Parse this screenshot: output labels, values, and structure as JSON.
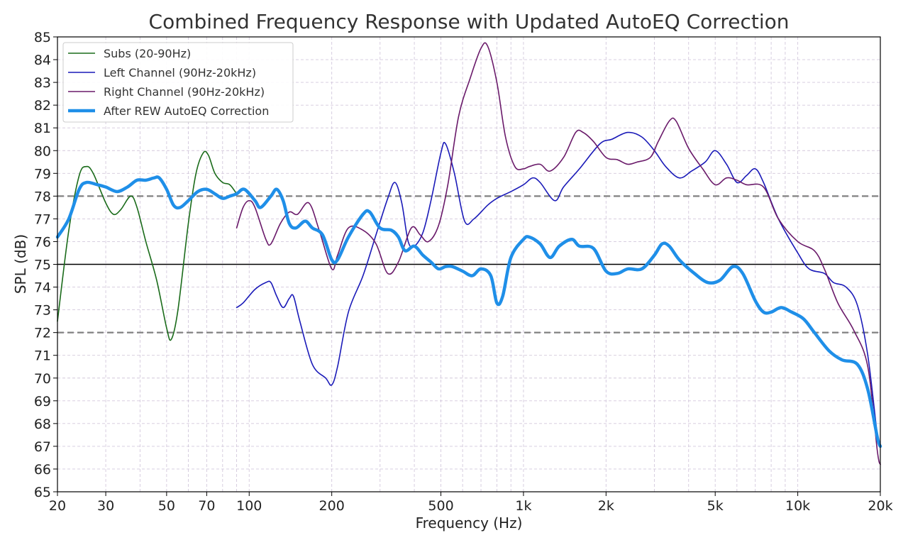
{
  "chart_data": {
    "type": "line",
    "title": "Combined Frequency Response with Updated AutoEQ Correction",
    "xlabel": "Frequency (Hz)",
    "ylabel": "SPL (dB)",
    "x_scale": "log",
    "xlim": [
      20,
      20000
    ],
    "ylim": [
      65,
      85
    ],
    "x_ticks": [
      {
        "value": 20,
        "label": "20"
      },
      {
        "value": 30,
        "label": "30"
      },
      {
        "value": 50,
        "label": "50"
      },
      {
        "value": 70,
        "label": "70"
      },
      {
        "value": 100,
        "label": "100"
      },
      {
        "value": 200,
        "label": "200"
      },
      {
        "value": 500,
        "label": "500"
      },
      {
        "value": 1000,
        "label": "1k"
      },
      {
        "value": 2000,
        "label": "2k"
      },
      {
        "value": 5000,
        "label": "5k"
      },
      {
        "value": 10000,
        "label": "10k"
      },
      {
        "value": 20000,
        "label": "20k"
      }
    ],
    "y_ticks": [
      65,
      66,
      67,
      68,
      69,
      70,
      71,
      72,
      73,
      74,
      75,
      76,
      77,
      78,
      79,
      80,
      81,
      82,
      83,
      84,
      85
    ],
    "grid": true,
    "legend_position": "top-left",
    "reference_lines": [
      {
        "y": 75,
        "style": "solid",
        "color": "#000000"
      },
      {
        "y": 78,
        "style": "dashed",
        "color": "#808080"
      },
      {
        "y": 72,
        "style": "dashed",
        "color": "#808080"
      }
    ],
    "series": [
      {
        "name": "Subs (20-90Hz)",
        "color": "#1a6b1a",
        "width": 1.6,
        "points": [
          [
            20,
            72.5
          ],
          [
            22,
            76.5
          ],
          [
            24,
            78.9
          ],
          [
            25.5,
            79.3
          ],
          [
            27,
            79.0
          ],
          [
            30,
            77.7
          ],
          [
            32,
            77.2
          ],
          [
            34,
            77.4
          ],
          [
            37,
            78.0
          ],
          [
            39,
            77.5
          ],
          [
            42,
            76.0
          ],
          [
            46,
            74.3
          ],
          [
            50,
            72.2
          ],
          [
            52,
            71.7
          ],
          [
            55,
            73.0
          ],
          [
            60,
            76.8
          ],
          [
            64,
            79.0
          ],
          [
            68,
            79.9
          ],
          [
            71,
            79.8
          ],
          [
            75,
            79.0
          ],
          [
            80,
            78.6
          ],
          [
            85,
            78.5
          ],
          [
            90,
            78.1
          ]
        ]
      },
      {
        "name": "Left Channel (90Hz-20kHz)",
        "color": "#1a1ab8",
        "width": 1.6,
        "points": [
          [
            90,
            73.1
          ],
          [
            95,
            73.3
          ],
          [
            105,
            73.9
          ],
          [
            115,
            74.2
          ],
          [
            120,
            74.2
          ],
          [
            126,
            73.6
          ],
          [
            133,
            73.1
          ],
          [
            140,
            73.5
          ],
          [
            145,
            73.6
          ],
          [
            153,
            72.5
          ],
          [
            170,
            70.6
          ],
          [
            190,
            70.0
          ],
          [
            200,
            69.7
          ],
          [
            210,
            70.5
          ],
          [
            230,
            72.9
          ],
          [
            260,
            74.5
          ],
          [
            290,
            76.3
          ],
          [
            320,
            77.9
          ],
          [
            340,
            78.6
          ],
          [
            360,
            77.7
          ],
          [
            380,
            76.0
          ],
          [
            400,
            75.8
          ],
          [
            430,
            76.4
          ],
          [
            460,
            77.8
          ],
          [
            500,
            79.9
          ],
          [
            520,
            80.3
          ],
          [
            560,
            79.0
          ],
          [
            610,
            76.9
          ],
          [
            660,
            77.0
          ],
          [
            740,
            77.6
          ],
          [
            800,
            77.9
          ],
          [
            900,
            78.2
          ],
          [
            1000,
            78.5
          ],
          [
            1080,
            78.8
          ],
          [
            1150,
            78.6
          ],
          [
            1300,
            77.8
          ],
          [
            1400,
            78.4
          ],
          [
            1600,
            79.2
          ],
          [
            1900,
            80.3
          ],
          [
            2100,
            80.5
          ],
          [
            2400,
            80.8
          ],
          [
            2700,
            80.6
          ],
          [
            3000,
            80.0
          ],
          [
            3300,
            79.3
          ],
          [
            3700,
            78.8
          ],
          [
            4100,
            79.1
          ],
          [
            4600,
            79.5
          ],
          [
            5000,
            80.0
          ],
          [
            5500,
            79.4
          ],
          [
            6000,
            78.6
          ],
          [
            6500,
            78.9
          ],
          [
            7000,
            79.2
          ],
          [
            7500,
            78.6
          ],
          [
            8500,
            77.0
          ],
          [
            10000,
            75.5
          ],
          [
            11000,
            74.8
          ],
          [
            12500,
            74.6
          ],
          [
            13500,
            74.2
          ],
          [
            15000,
            74.0
          ],
          [
            16500,
            73.2
          ],
          [
            18000,
            71.0
          ],
          [
            19500,
            67.5
          ],
          [
            20000,
            67.0
          ]
        ]
      },
      {
        "name": "Right Channel (90Hz-20kHz)",
        "color": "#6a1a6a",
        "width": 1.6,
        "points": [
          [
            90,
            76.6
          ],
          [
            95,
            77.5
          ],
          [
            100,
            77.8
          ],
          [
            105,
            77.5
          ],
          [
            115,
            76.1
          ],
          [
            120,
            75.9
          ],
          [
            130,
            76.8
          ],
          [
            140,
            77.3
          ],
          [
            150,
            77.2
          ],
          [
            165,
            77.7
          ],
          [
            180,
            76.5
          ],
          [
            200,
            74.8
          ],
          [
            210,
            75.4
          ],
          [
            230,
            76.6
          ],
          [
            260,
            76.5
          ],
          [
            290,
            75.9
          ],
          [
            320,
            74.6
          ],
          [
            350,
            75.1
          ],
          [
            390,
            76.6
          ],
          [
            420,
            76.3
          ],
          [
            450,
            76.0
          ],
          [
            490,
            76.7
          ],
          [
            530,
            78.5
          ],
          [
            580,
            81.5
          ],
          [
            640,
            83.2
          ],
          [
            700,
            84.5
          ],
          [
            740,
            84.6
          ],
          [
            800,
            83.0
          ],
          [
            860,
            80.6
          ],
          [
            930,
            79.3
          ],
          [
            1000,
            79.2
          ],
          [
            1050,
            79.3
          ],
          [
            1150,
            79.4
          ],
          [
            1250,
            79.1
          ],
          [
            1400,
            79.7
          ],
          [
            1550,
            80.8
          ],
          [
            1650,
            80.8
          ],
          [
            1800,
            80.4
          ],
          [
            2000,
            79.7
          ],
          [
            2200,
            79.6
          ],
          [
            2400,
            79.4
          ],
          [
            2600,
            79.5
          ],
          [
            2900,
            79.7
          ],
          [
            3100,
            80.4
          ],
          [
            3400,
            81.3
          ],
          [
            3600,
            81.3
          ],
          [
            4000,
            80.1
          ],
          [
            4500,
            79.2
          ],
          [
            5000,
            78.5
          ],
          [
            5500,
            78.8
          ],
          [
            6000,
            78.7
          ],
          [
            6500,
            78.5
          ],
          [
            7500,
            78.4
          ],
          [
            8500,
            77.0
          ],
          [
            10000,
            76.0
          ],
          [
            11500,
            75.6
          ],
          [
            12500,
            74.8
          ],
          [
            14000,
            73.3
          ],
          [
            16000,
            72.1
          ],
          [
            18000,
            70.5
          ],
          [
            19500,
            66.8
          ],
          [
            20000,
            66.2
          ]
        ]
      },
      {
        "name": "After REW AutoEQ Correction",
        "color": "#1f8fe8",
        "width": 4.5,
        "points": [
          [
            20,
            76.2
          ],
          [
            22,
            77.0
          ],
          [
            24,
            78.3
          ],
          [
            25.5,
            78.6
          ],
          [
            28,
            78.5
          ],
          [
            30,
            78.4
          ],
          [
            33,
            78.2
          ],
          [
            36,
            78.4
          ],
          [
            39,
            78.7
          ],
          [
            42,
            78.7
          ],
          [
            45,
            78.8
          ],
          [
            47,
            78.8
          ],
          [
            50,
            78.3
          ],
          [
            53,
            77.6
          ],
          [
            56,
            77.5
          ],
          [
            60,
            77.8
          ],
          [
            65,
            78.2
          ],
          [
            70,
            78.3
          ],
          [
            75,
            78.1
          ],
          [
            80,
            77.9
          ],
          [
            85,
            78.0
          ],
          [
            90,
            78.1
          ],
          [
            96,
            78.3
          ],
          [
            105,
            77.8
          ],
          [
            110,
            77.5
          ],
          [
            120,
            78.0
          ],
          [
            126,
            78.3
          ],
          [
            133,
            77.8
          ],
          [
            140,
            76.8
          ],
          [
            148,
            76.6
          ],
          [
            160,
            76.9
          ],
          [
            170,
            76.6
          ],
          [
            185,
            76.3
          ],
          [
            200,
            75.2
          ],
          [
            210,
            75.2
          ],
          [
            230,
            76.2
          ],
          [
            260,
            77.2
          ],
          [
            275,
            77.3
          ],
          [
            300,
            76.6
          ],
          [
            330,
            76.5
          ],
          [
            350,
            76.2
          ],
          [
            370,
            75.6
          ],
          [
            400,
            75.8
          ],
          [
            430,
            75.4
          ],
          [
            460,
            75.1
          ],
          [
            490,
            74.8
          ],
          [
            520,
            74.9
          ],
          [
            550,
            74.9
          ],
          [
            600,
            74.7
          ],
          [
            650,
            74.5
          ],
          [
            700,
            74.8
          ],
          [
            760,
            74.5
          ],
          [
            800,
            73.3
          ],
          [
            840,
            73.6
          ],
          [
            900,
            75.3
          ],
          [
            1000,
            76.1
          ],
          [
            1050,
            76.2
          ],
          [
            1150,
            75.9
          ],
          [
            1250,
            75.3
          ],
          [
            1350,
            75.8
          ],
          [
            1500,
            76.1
          ],
          [
            1600,
            75.8
          ],
          [
            1800,
            75.7
          ],
          [
            2000,
            74.7
          ],
          [
            2200,
            74.6
          ],
          [
            2400,
            74.8
          ],
          [
            2700,
            74.8
          ],
          [
            3000,
            75.4
          ],
          [
            3200,
            75.9
          ],
          [
            3400,
            75.8
          ],
          [
            3700,
            75.2
          ],
          [
            4200,
            74.6
          ],
          [
            4700,
            74.2
          ],
          [
            5200,
            74.3
          ],
          [
            5800,
            74.9
          ],
          [
            6300,
            74.6
          ],
          [
            7000,
            73.4
          ],
          [
            7500,
            72.9
          ],
          [
            8000,
            72.9
          ],
          [
            8700,
            73.1
          ],
          [
            9500,
            72.9
          ],
          [
            10500,
            72.6
          ],
          [
            11500,
            72.0
          ],
          [
            13000,
            71.2
          ],
          [
            14500,
            70.8
          ],
          [
            16500,
            70.6
          ],
          [
            18000,
            69.5
          ],
          [
            19500,
            67.4
          ],
          [
            20000,
            67.0
          ]
        ]
      }
    ]
  }
}
